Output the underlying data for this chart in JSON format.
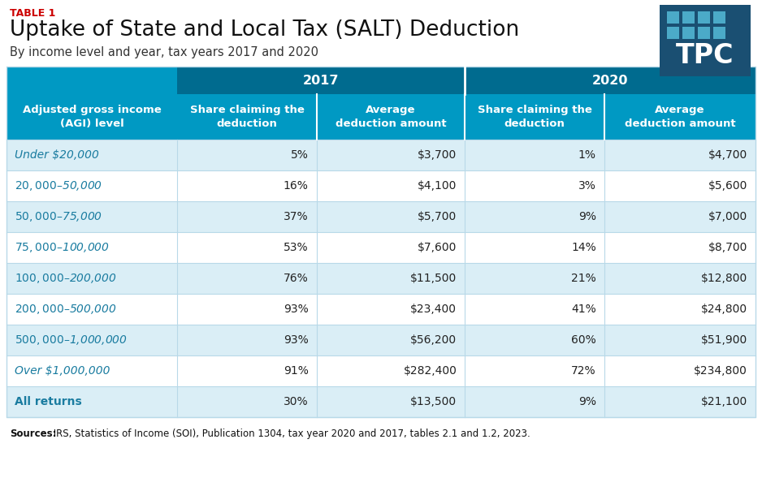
{
  "table_label": "TABLE 1",
  "title": "Uptake of State and Local Tax (SALT) Deduction",
  "subtitle": "By income level and year, tax years 2017 and 2020",
  "source_bold": "Sources:",
  "source_rest": " IRS, Statistics of Income (SOI), Publication 1304, tax year 2020 and 2017, tables 2.1 and 1.2, 2023.",
  "col_header_year1": "2017",
  "col_header_year2": "2020",
  "col_header_row_label": "Adjusted gross income\n(AGI) level",
  "col_sub1": "Share claiming the\ndeduction",
  "col_sub2": "Average\ndeduction amount",
  "col_sub3": "Share claiming the\ndeduction",
  "col_sub4": "Average\ndeduction amount",
  "rows": [
    [
      "Under $20,000",
      "5%",
      "$3,700",
      "1%",
      "$4,700"
    ],
    [
      "$20,000–$50,000",
      "16%",
      "$4,100",
      "3%",
      "$5,600"
    ],
    [
      "$50,000–$75,000",
      "37%",
      "$5,700",
      "9%",
      "$7,000"
    ],
    [
      "$75,000–$100,000",
      "53%",
      "$7,600",
      "14%",
      "$8,700"
    ],
    [
      "$100,000–$200,000",
      "76%",
      "$11,500",
      "21%",
      "$12,800"
    ],
    [
      "$200,000–$500,000",
      "93%",
      "$23,400",
      "41%",
      "$24,800"
    ],
    [
      "$500,000–$1,000,000",
      "93%",
      "$56,200",
      "60%",
      "$51,900"
    ],
    [
      "Over $1,000,000",
      "91%",
      "$282,400",
      "72%",
      "$234,800"
    ],
    [
      "All returns",
      "30%",
      "$13,500",
      "9%",
      "$21,100"
    ]
  ],
  "color_header_dark": "#006B8F",
  "color_header_medium": "#0099C3",
  "color_row_light": "#DAEEF6",
  "color_row_white": "#FFFFFF",
  "color_label_red": "#CC0000",
  "color_tpc_dark": "#1A4F72",
  "color_tpc_light": "#4BAAC8",
  "color_border": "#B8D9E8",
  "color_text_dark": "#222222",
  "color_row_label": "#1A7CA0",
  "fig_w": 9.38,
  "fig_h": 6.05,
  "dpi": 100
}
